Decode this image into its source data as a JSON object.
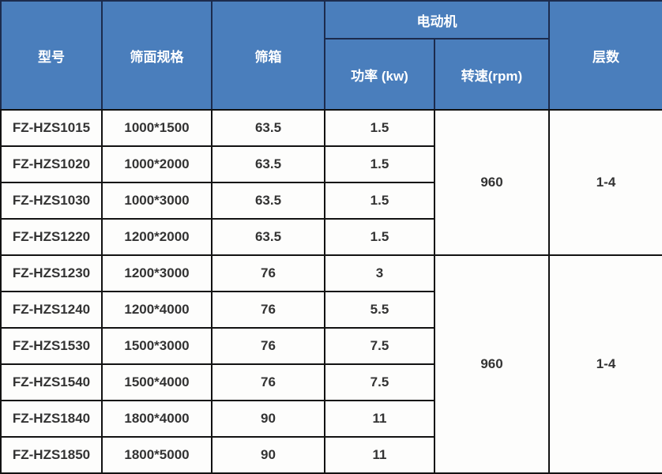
{
  "table": {
    "header": {
      "model": "型号",
      "spec": "筛面规格",
      "box": "筛箱",
      "motor": "电动机",
      "power": "功率 (kw)",
      "rpm": "转速(rpm)",
      "layers": "层数"
    },
    "groups": [
      {
        "rows": [
          {
            "model": "FZ-HZS1015",
            "spec": "1000*1500",
            "box": "63.5",
            "power": "1.5"
          },
          {
            "model": "FZ-HZS1020",
            "spec": "1000*2000",
            "box": "63.5",
            "power": "1.5"
          },
          {
            "model": "FZ-HZS1030",
            "spec": "1000*3000",
            "box": "63.5",
            "power": "1.5"
          },
          {
            "model": "FZ-HZS1220",
            "spec": "1200*2000",
            "box": "63.5",
            "power": "1.5"
          }
        ],
        "rpm": "960",
        "layers": "1-4"
      },
      {
        "rows": [
          {
            "model": "FZ-HZS1230",
            "spec": "1200*3000",
            "box": "76",
            "power": "3"
          },
          {
            "model": "FZ-HZS1240",
            "spec": "1200*4000",
            "box": "76",
            "power": "5.5"
          },
          {
            "model": "FZ-HZS1530",
            "spec": "1500*3000",
            "box": "76",
            "power": "7.5"
          },
          {
            "model": "FZ-HZS1540",
            "spec": "1500*4000",
            "box": "76",
            "power": "7.5"
          },
          {
            "model": "FZ-HZS1840",
            "spec": "1800*4000",
            "box": "90",
            "power": "11"
          },
          {
            "model": "FZ-HZS1850",
            "spec": "1800*5000",
            "box": "90",
            "power": "11"
          }
        ],
        "rpm": "960",
        "layers": "1-4"
      }
    ]
  },
  "colors": {
    "header_bg": "#4a7ebc",
    "header_text": "#ffffff",
    "header_border": "#1c2b4d",
    "grid_line": "#121212",
    "body_bg": "#fdfdfc",
    "body_text": "#333333"
  }
}
